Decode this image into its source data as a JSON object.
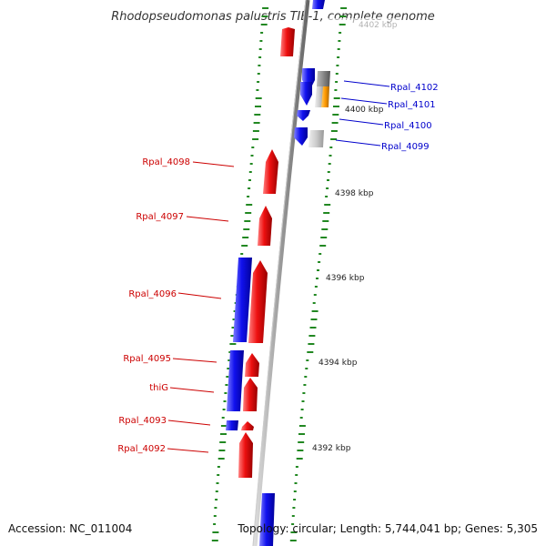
{
  "title": "Rhodopseudomonas palustris TIE-1, complete genome",
  "footer": {
    "accession": "Accession: NC_011004",
    "topology": "Topology: circular; Length: 5,744,041 bp; Genes: 5,305"
  },
  "colors": {
    "forward": "#ee1111",
    "reverse": "#1111ee",
    "orange": "#ff9900",
    "gray_dark": "#888888",
    "gray_light": "#cccccc",
    "tick": "#228822",
    "backbone": "#999999",
    "label_red": "#cc0000",
    "label_blue": "#0000cc"
  },
  "kbp_labels": [
    {
      "kbp": 4402,
      "text": "4402 kbp"
    },
    {
      "kbp": 4400,
      "text": "4400 kbp"
    },
    {
      "kbp": 4398,
      "text": "4398 kbp"
    },
    {
      "kbp": 4396,
      "text": "4396 kbp"
    },
    {
      "kbp": 4394,
      "text": "4394 kbp"
    },
    {
      "kbp": 4392,
      "text": "4392 kbp"
    }
  ],
  "gene_labels": [
    {
      "text": "Rpal_4102",
      "color": "blue"
    },
    {
      "text": "Rpal_4101",
      "color": "blue"
    },
    {
      "text": "Rpal_4100",
      "color": "blue"
    },
    {
      "text": "Rpal_4099",
      "color": "blue"
    },
    {
      "text": "Rpal_4098",
      "color": "red"
    },
    {
      "text": "Rpal_4097",
      "color": "red"
    },
    {
      "text": "Rpal_4096",
      "color": "red"
    },
    {
      "text": "Rpal_4095",
      "color": "red"
    },
    {
      "text": "thiG",
      "color": "red"
    },
    {
      "text": "Rpal_4093",
      "color": "red"
    },
    {
      "text": "Rpal_4092",
      "color": "red"
    }
  ]
}
